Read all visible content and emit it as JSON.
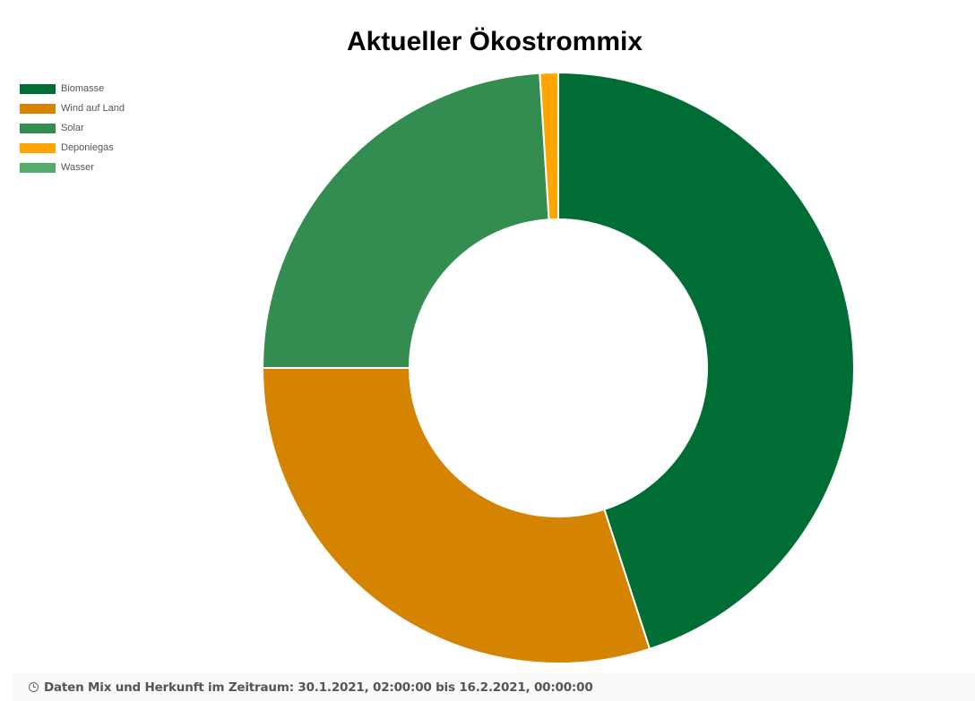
{
  "colors": {
    "biomasse": "#006e34",
    "wind_auf_land": "#d48400",
    "solar": "#338d50",
    "deponiegas": "#ffa500",
    "wasser": "#55ab6b"
  },
  "chart_data": {
    "type": "pie",
    "variant": "donut",
    "title": "Aktueller Ökostrommix",
    "legend_position": "top-left",
    "categories": [
      "Biomasse",
      "Wind auf Land",
      "Solar",
      "Deponiegas",
      "Wasser"
    ],
    "values": [
      45.0,
      30.0,
      24.0,
      1.0,
      0.0
    ],
    "unit": "%"
  },
  "footer": {
    "icon": "clock-icon",
    "text": "Daten Mix und Herkunft im Zeitraum: 30.1.2021, 02:00:00 bis 16.2.2021, 00:00:00"
  }
}
